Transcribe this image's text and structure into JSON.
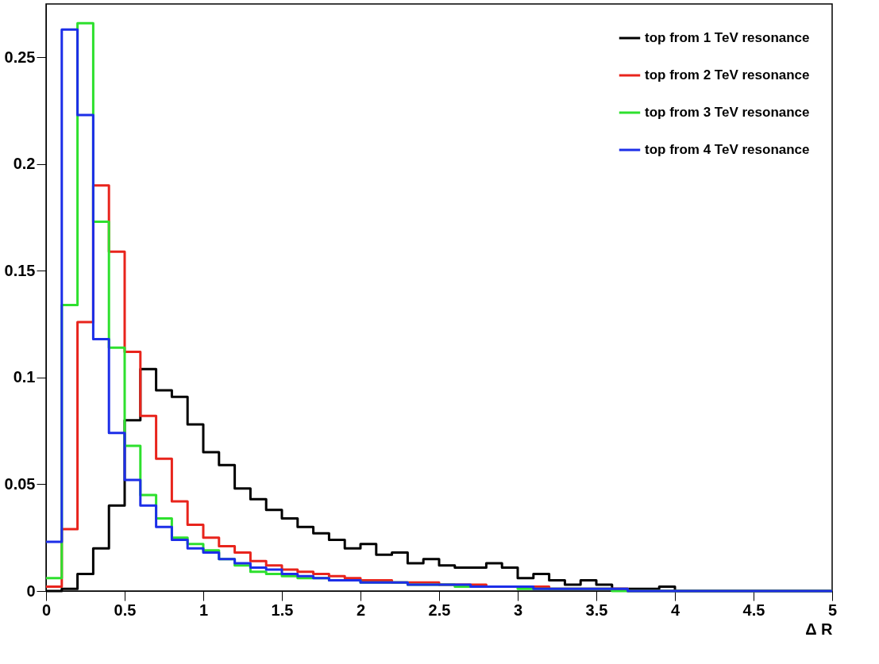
{
  "chart_data": {
    "type": "histogram",
    "xlabel": "Δ R",
    "bins": [
      0,
      0.1,
      0.2,
      0.3,
      0.4,
      0.5,
      0.6,
      0.7,
      0.8,
      0.9,
      1.0,
      1.1,
      1.2,
      1.3,
      1.4,
      1.5,
      1.6,
      1.7,
      1.8,
      1.9,
      2.0,
      2.1,
      2.2,
      2.3,
      2.4,
      2.5,
      2.6,
      2.7,
      2.8,
      2.9,
      3.0,
      3.1,
      3.2,
      3.3,
      3.4,
      3.5,
      3.6,
      3.7,
      3.8,
      3.9,
      4.0,
      4.1,
      4.2,
      4.3,
      4.4,
      4.5,
      4.6,
      4.7,
      4.8,
      4.9,
      5.0
    ],
    "series": [
      {
        "name": "top from 1 TeV resonance",
        "color": "#000000",
        "values": [
          0,
          0.001,
          0.008,
          0.02,
          0.04,
          0.08,
          0.104,
          0.094,
          0.091,
          0.078,
          0.065,
          0.059,
          0.048,
          0.043,
          0.038,
          0.034,
          0.03,
          0.027,
          0.024,
          0.02,
          0.022,
          0.017,
          0.018,
          0.013,
          0.015,
          0.012,
          0.011,
          0.011,
          0.013,
          0.011,
          0.006,
          0.008,
          0.005,
          0.003,
          0.005,
          0.003,
          0.001,
          0.001,
          0.001,
          0.002,
          0,
          0,
          0,
          0,
          0,
          0,
          0,
          0,
          0,
          0
        ]
      },
      {
        "name": "top from 2 TeV resonance",
        "color": "#e8241c",
        "values": [
          0.002,
          0.029,
          0.126,
          0.19,
          0.159,
          0.112,
          0.082,
          0.062,
          0.042,
          0.031,
          0.025,
          0.021,
          0.018,
          0.014,
          0.012,
          0.01,
          0.009,
          0.008,
          0.007,
          0.006,
          0.005,
          0.005,
          0.004,
          0.004,
          0.004,
          0.003,
          0.003,
          0.003,
          0.002,
          0.002,
          0.002,
          0.002,
          0.001,
          0.001,
          0.001,
          0.001,
          0.001,
          0,
          0,
          0,
          0,
          0,
          0,
          0,
          0,
          0,
          0,
          0,
          0,
          0
        ]
      },
      {
        "name": "top from 3 TeV resonance",
        "color": "#2ee02e",
        "values": [
          0.006,
          0.134,
          0.266,
          0.173,
          0.114,
          0.068,
          0.045,
          0.034,
          0.025,
          0.022,
          0.019,
          0.015,
          0.012,
          0.009,
          0.008,
          0.007,
          0.006,
          0.006,
          0.005,
          0.005,
          0.004,
          0.004,
          0.004,
          0.003,
          0.003,
          0.003,
          0.002,
          0.002,
          0.002,
          0.002,
          0.001,
          0.001,
          0.001,
          0.001,
          0.001,
          0.001,
          0,
          0,
          0,
          0,
          0,
          0,
          0,
          0,
          0,
          0,
          0,
          0,
          0,
          0
        ]
      },
      {
        "name": "top from 4 TeV resonance",
        "color": "#1c2ee8",
        "values": [
          0.023,
          0.263,
          0.223,
          0.118,
          0.074,
          0.052,
          0.04,
          0.03,
          0.024,
          0.02,
          0.018,
          0.015,
          0.013,
          0.011,
          0.01,
          0.008,
          0.007,
          0.006,
          0.005,
          0.005,
          0.004,
          0.004,
          0.004,
          0.003,
          0.003,
          0.003,
          0.003,
          0.002,
          0.002,
          0.002,
          0.002,
          0.001,
          0.001,
          0.001,
          0.001,
          0.001,
          0.001,
          0,
          0,
          0,
          0,
          0,
          0,
          0,
          0,
          0,
          0,
          0,
          0,
          0
        ]
      }
    ],
    "xlim": [
      0,
      5
    ],
    "xticks": [
      0,
      0.5,
      1,
      1.5,
      2,
      2.5,
      3,
      3.5,
      4,
      4.5,
      5
    ],
    "ylim": [
      0,
      0.275
    ],
    "yticks": [
      0,
      0.05,
      0.1,
      0.15,
      0.2,
      0.25
    ],
    "grid": false,
    "legend": "top right"
  }
}
